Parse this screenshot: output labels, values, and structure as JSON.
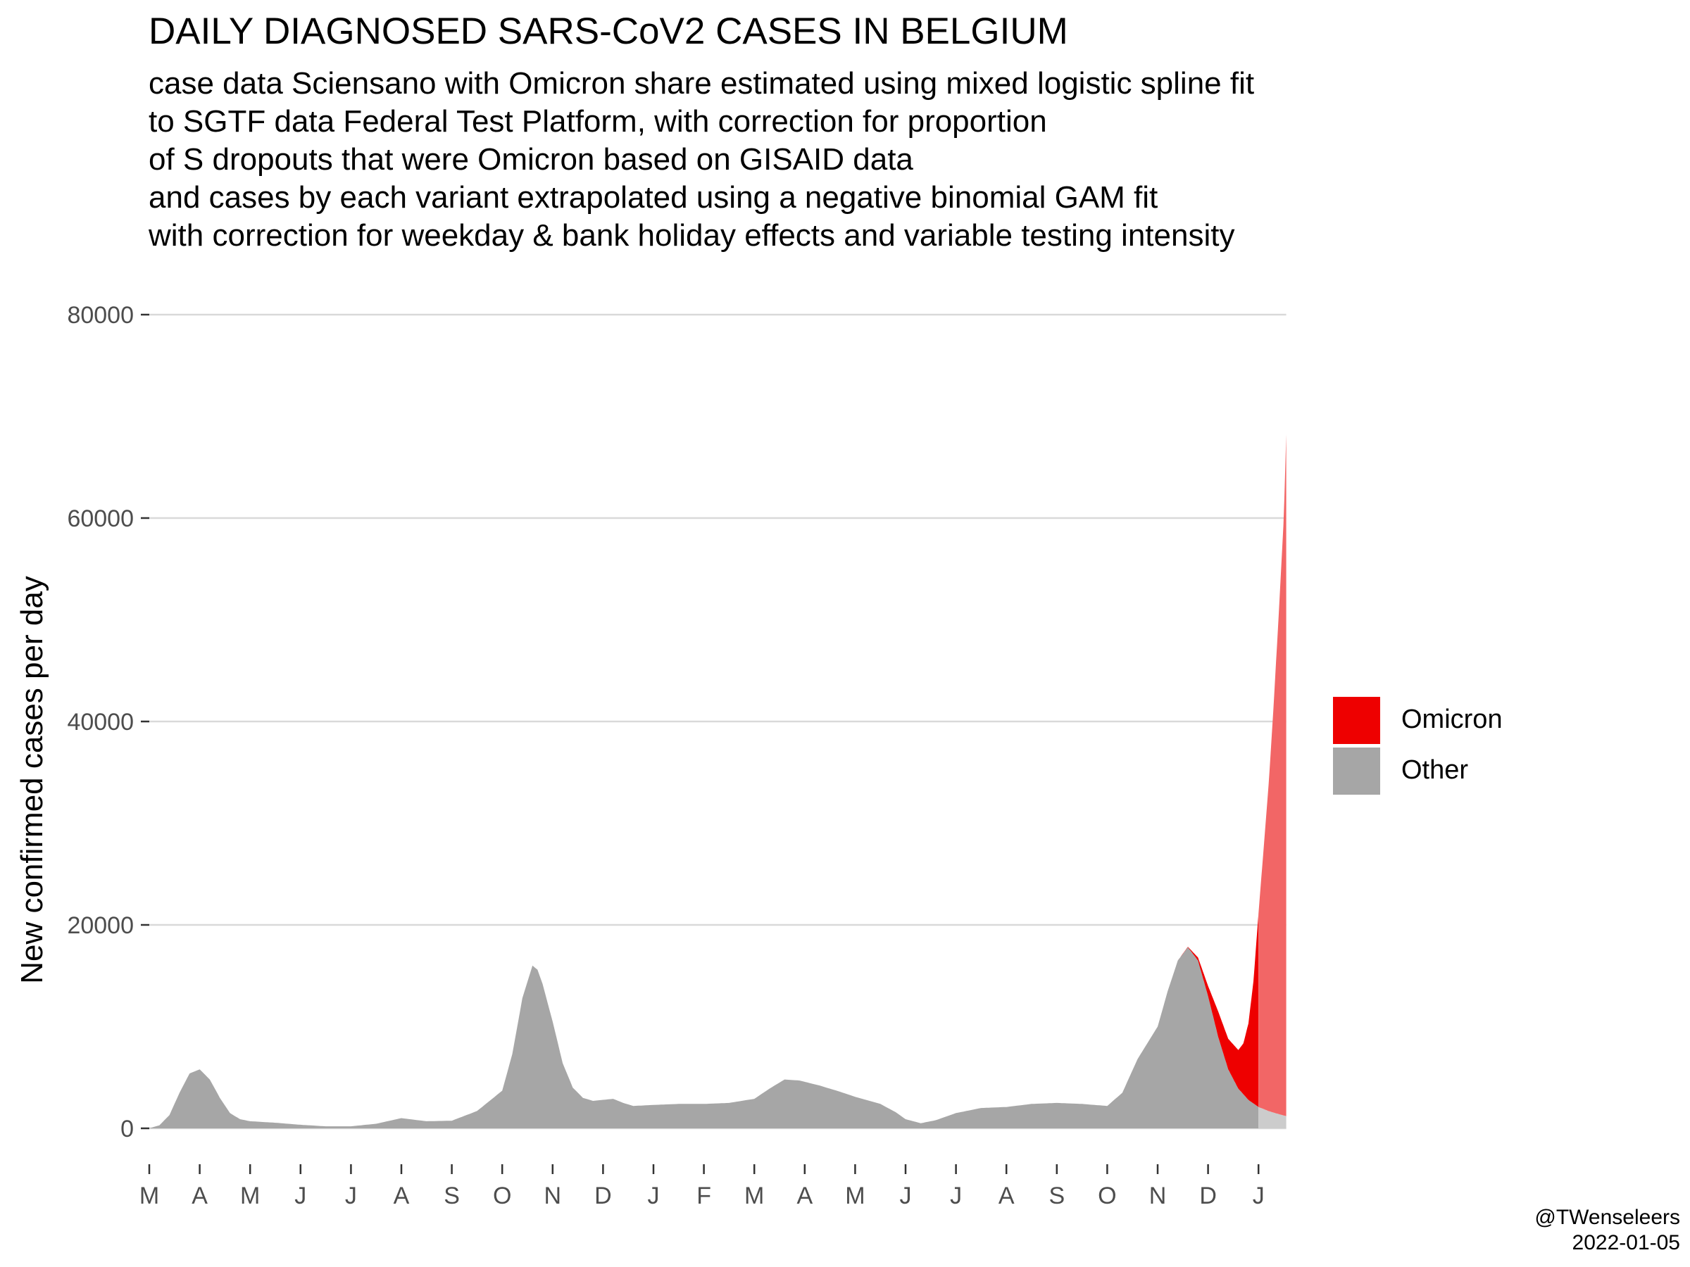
{
  "header": {
    "title": "DAILY DIAGNOSED SARS-CoV2 CASES IN BELGIUM",
    "subtitle_lines": [
      "case data Sciensano with Omicron share estimated using mixed logistic spline fit",
      "to SGTF data Federal Test Platform, with correction for proportion",
      "of S dropouts that were Omicron based on GISAID data",
      "and cases by each variant extrapolated using a negative binomial GAM fit",
      "with correction for weekday & bank holiday effects and variable testing intensity"
    ]
  },
  "credit": {
    "handle": "@TWenseleers",
    "date": "2022-01-05"
  },
  "chart_data": {
    "type": "area",
    "stacked": true,
    "title": "DAILY DIAGNOSED SARS-CoV2 CASES IN BELGIUM",
    "xlabel": "",
    "ylabel": "New confirmed cases per day",
    "x_unit": "month index (0 = 1 Mar 2020)",
    "ylim": [
      0,
      80000
    ],
    "yticks": [
      0,
      20000,
      40000,
      60000,
      80000
    ],
    "xticks": [
      {
        "value": 0,
        "label": "M"
      },
      {
        "value": 1,
        "label": "A"
      },
      {
        "value": 2,
        "label": "M"
      },
      {
        "value": 3,
        "label": "J"
      },
      {
        "value": 4,
        "label": "J"
      },
      {
        "value": 5,
        "label": "A"
      },
      {
        "value": 6,
        "label": "S"
      },
      {
        "value": 7,
        "label": "O"
      },
      {
        "value": 8,
        "label": "N"
      },
      {
        "value": 9,
        "label": "D"
      },
      {
        "value": 10,
        "label": "J"
      },
      {
        "value": 11,
        "label": "F"
      },
      {
        "value": 12,
        "label": "M"
      },
      {
        "value": 13,
        "label": "A"
      },
      {
        "value": 14,
        "label": "M"
      },
      {
        "value": 15,
        "label": "J"
      },
      {
        "value": 16,
        "label": "J"
      },
      {
        "value": 17,
        "label": "A"
      },
      {
        "value": 18,
        "label": "S"
      },
      {
        "value": 19,
        "label": "O"
      },
      {
        "value": 20,
        "label": "N"
      },
      {
        "value": 21,
        "label": "D"
      },
      {
        "value": 22,
        "label": "J"
      }
    ],
    "xlim": [
      0,
      22.55
    ],
    "grid": "horizontal",
    "legend_position": "right",
    "legend": [
      {
        "name": "Omicron",
        "color": "#ee0000"
      },
      {
        "name": "Other",
        "color": "#a6a6a6"
      }
    ],
    "observed_until": 22.0,
    "series": [
      {
        "name": "Other",
        "color": "#a6a6a6",
        "forecast_color": "#cccccc",
        "points": [
          [
            0.0,
            0
          ],
          [
            0.2,
            300
          ],
          [
            0.4,
            1300
          ],
          [
            0.6,
            3500
          ],
          [
            0.8,
            5400
          ],
          [
            1.0,
            5800
          ],
          [
            1.2,
            4800
          ],
          [
            1.4,
            3000
          ],
          [
            1.6,
            1500
          ],
          [
            1.8,
            900
          ],
          [
            2.0,
            700
          ],
          [
            2.5,
            550
          ],
          [
            3.0,
            350
          ],
          [
            3.5,
            200
          ],
          [
            4.0,
            200
          ],
          [
            4.5,
            450
          ],
          [
            5.0,
            1000
          ],
          [
            5.5,
            700
          ],
          [
            6.0,
            750
          ],
          [
            6.5,
            1700
          ],
          [
            7.0,
            3700
          ],
          [
            7.2,
            7300
          ],
          [
            7.4,
            12800
          ],
          [
            7.6,
            16000
          ],
          [
            7.7,
            15600
          ],
          [
            7.8,
            14200
          ],
          [
            8.0,
            10500
          ],
          [
            8.2,
            6400
          ],
          [
            8.4,
            4000
          ],
          [
            8.6,
            3000
          ],
          [
            8.8,
            2700
          ],
          [
            9.0,
            2800
          ],
          [
            9.2,
            2900
          ],
          [
            9.4,
            2500
          ],
          [
            9.6,
            2200
          ],
          [
            10.0,
            2300
          ],
          [
            10.5,
            2400
          ],
          [
            11.0,
            2400
          ],
          [
            11.5,
            2500
          ],
          [
            12.0,
            2900
          ],
          [
            12.3,
            3900
          ],
          [
            12.6,
            4800
          ],
          [
            12.9,
            4700
          ],
          [
            13.3,
            4200
          ],
          [
            13.7,
            3600
          ],
          [
            14.0,
            3100
          ],
          [
            14.5,
            2400
          ],
          [
            14.8,
            1600
          ],
          [
            15.0,
            900
          ],
          [
            15.3,
            500
          ],
          [
            15.6,
            800
          ],
          [
            16.0,
            1500
          ],
          [
            16.5,
            2000
          ],
          [
            17.0,
            2100
          ],
          [
            17.5,
            2400
          ],
          [
            18.0,
            2500
          ],
          [
            18.5,
            2400
          ],
          [
            19.0,
            2200
          ],
          [
            19.3,
            3500
          ],
          [
            19.6,
            6800
          ],
          [
            20.0,
            10000
          ],
          [
            20.2,
            13500
          ],
          [
            20.4,
            16500
          ],
          [
            20.6,
            17800
          ],
          [
            20.8,
            16500
          ],
          [
            21.0,
            13000
          ],
          [
            21.2,
            9000
          ],
          [
            21.4,
            5800
          ],
          [
            21.6,
            3900
          ],
          [
            21.8,
            2800
          ],
          [
            22.0,
            2100
          ],
          [
            22.2,
            1700
          ],
          [
            22.4,
            1400
          ],
          [
            22.55,
            1200
          ]
        ]
      },
      {
        "name": "Omicron",
        "color": "#ee0000",
        "forecast_color": "#f26666",
        "points": [
          [
            20.4,
            0
          ],
          [
            20.6,
            50
          ],
          [
            20.8,
            300
          ],
          [
            21.0,
            1000
          ],
          [
            21.2,
            2500
          ],
          [
            21.4,
            3000
          ],
          [
            21.6,
            3800
          ],
          [
            21.7,
            5000
          ],
          [
            21.8,
            7500
          ],
          [
            21.9,
            12000
          ],
          [
            22.0,
            19000
          ],
          [
            22.1,
            25500
          ],
          [
            22.2,
            32000
          ],
          [
            22.3,
            40000
          ],
          [
            22.4,
            49000
          ],
          [
            22.5,
            58500
          ],
          [
            22.55,
            67000
          ]
        ]
      }
    ]
  }
}
